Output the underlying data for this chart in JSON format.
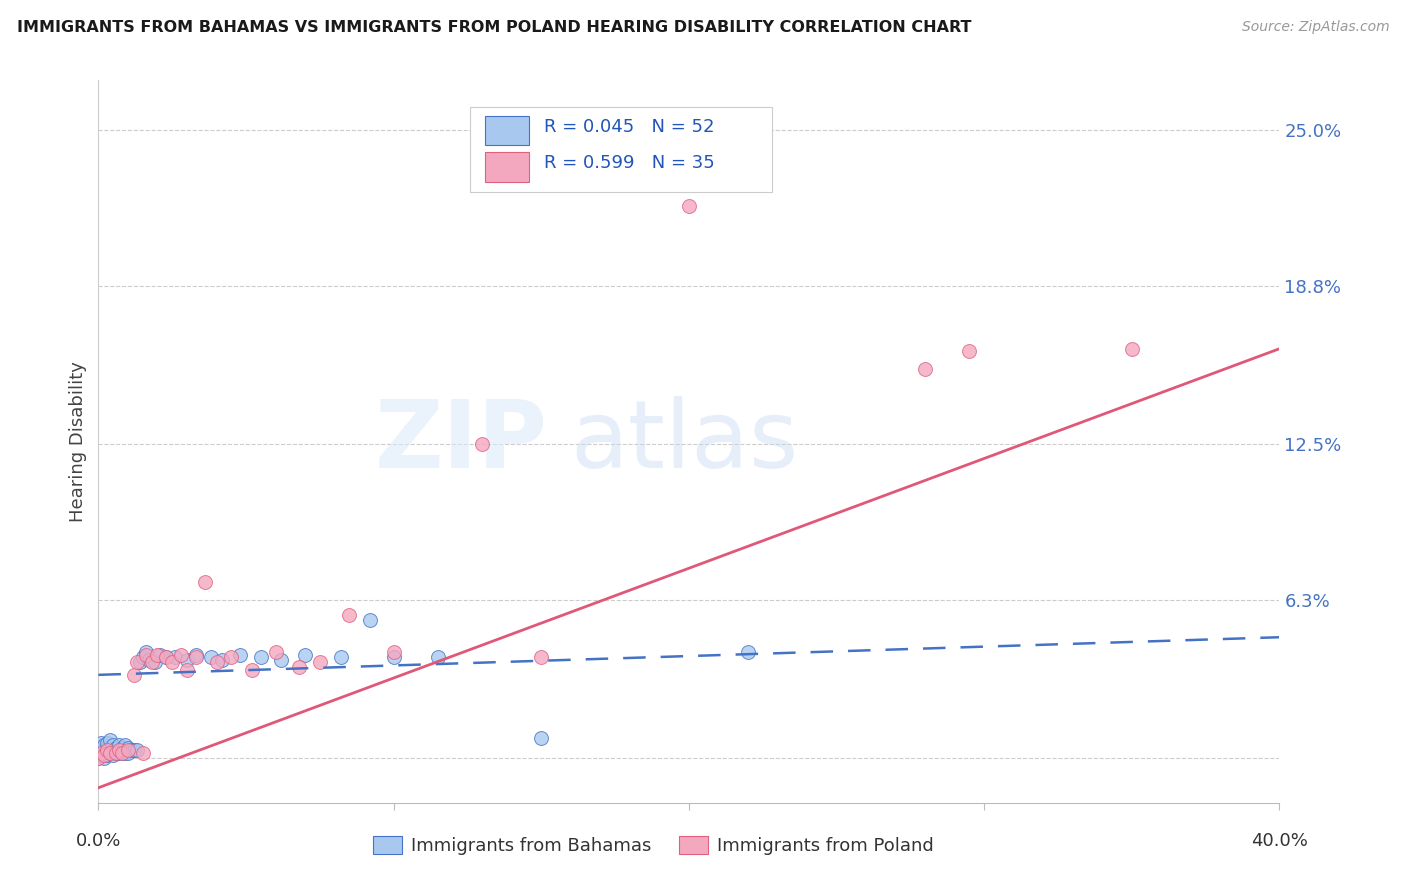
{
  "title": "IMMIGRANTS FROM BAHAMAS VS IMMIGRANTS FROM POLAND HEARING DISABILITY CORRELATION CHART",
  "source": "Source: ZipAtlas.com",
  "ylabel": "Hearing Disability",
  "xlim": [
    0.0,
    0.4
  ],
  "ylim": [
    -0.018,
    0.27
  ],
  "yticks": [
    0.0,
    0.063,
    0.125,
    0.188,
    0.25
  ],
  "ytick_labels": [
    "",
    "6.3%",
    "12.5%",
    "18.8%",
    "25.0%"
  ],
  "color_bahamas_fill": "#a8c8f0",
  "color_bahamas_edge": "#4472c4",
  "color_poland_fill": "#f4a8c0",
  "color_poland_edge": "#e06080",
  "color_line_bahamas": "#4472c4",
  "color_line_poland": "#e05878",
  "bah_trend_x0": 0.0,
  "bah_trend_y0": 0.033,
  "bah_trend_x1": 0.4,
  "bah_trend_y1": 0.048,
  "pol_trend_x0": 0.0,
  "pol_trend_y0": -0.012,
  "pol_trend_x1": 0.4,
  "pol_trend_y1": 0.163,
  "label_bahamas": "Immigrants from Bahamas",
  "label_poland": "Immigrants from Poland",
  "legend_text1": "R = 0.045   N = 52",
  "legend_text2": "R = 0.599   N = 35"
}
